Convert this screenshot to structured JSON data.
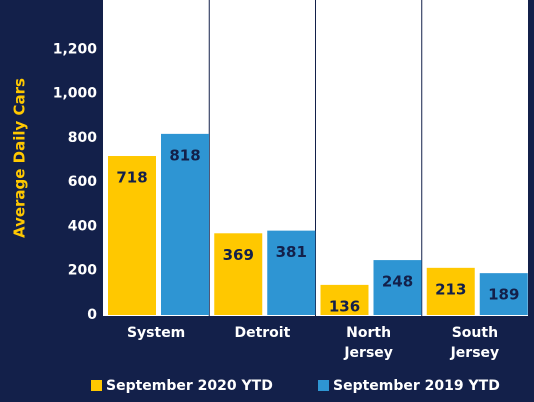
{
  "chart_data": {
    "type": "bar",
    "y_label": "Average Daily Cars",
    "categories": [
      "System",
      "Detroit",
      "North Jersey",
      "South Jersey"
    ],
    "series": [
      {
        "name": "September 2020 YTD",
        "color": "#ffc800",
        "values": [
          718,
          369,
          136,
          213
        ]
      },
      {
        "name": "September 2019 YTD",
        "color": "#2e95d3",
        "values": [
          818,
          381,
          248,
          189
        ]
      }
    ],
    "ylim": [
      0,
      1400
    ],
    "yticks": [
      0,
      200,
      400,
      600,
      800,
      {
        "value": 1000,
        "label": "1,000"
      },
      {
        "value": 1200,
        "label": "1,200"
      }
    ],
    "grid": false
  }
}
